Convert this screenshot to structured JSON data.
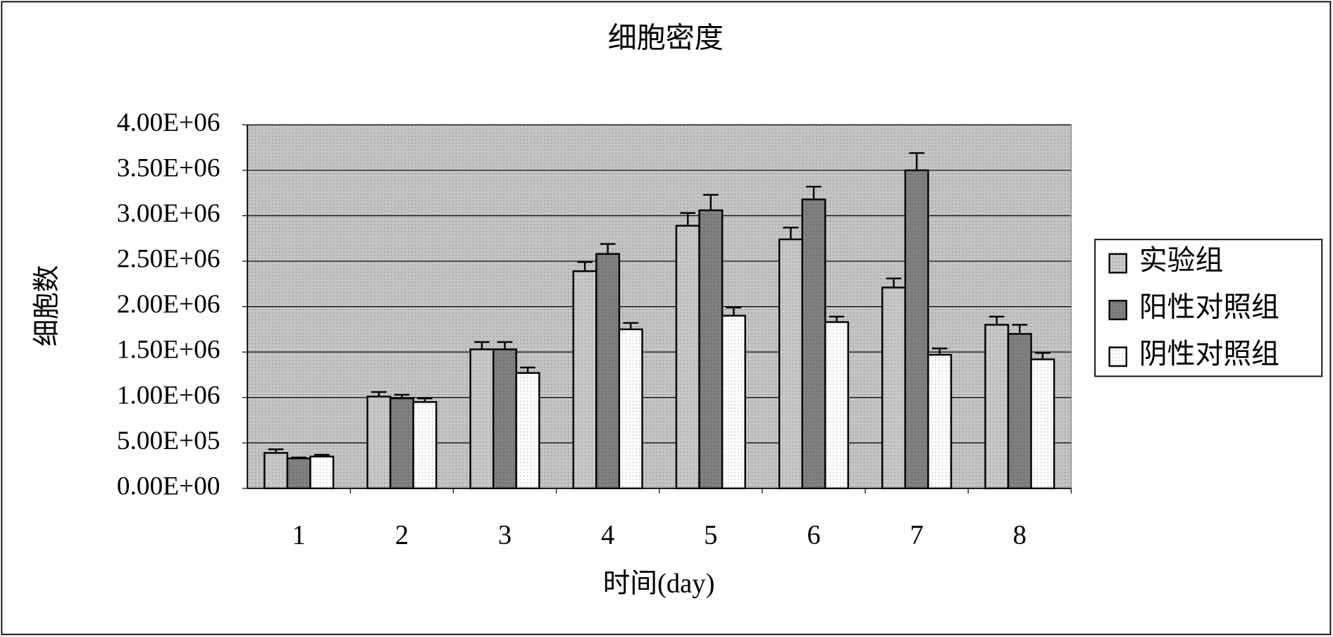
{
  "chart_data": {
    "type": "bar",
    "title": "细胞密度",
    "x_label": "时间(day)",
    "y_label": "细胞数",
    "categories": [
      "1",
      "2",
      "3",
      "4",
      "5",
      "6",
      "7",
      "8"
    ],
    "series": [
      {
        "name": "实验组",
        "color": "#c8c8c8",
        "values": [
          390000,
          1010000,
          1530000,
          2390000,
          2890000,
          2740000,
          2210000,
          1800000
        ],
        "errors": [
          40000,
          50000,
          80000,
          100000,
          140000,
          130000,
          100000,
          90000
        ]
      },
      {
        "name": "阳性对照组",
        "color": "#808080",
        "values": [
          330000,
          990000,
          1530000,
          2580000,
          3060000,
          3180000,
          3500000,
          1700000
        ],
        "errors": [
          10000,
          40000,
          80000,
          110000,
          170000,
          140000,
          190000,
          100000
        ]
      },
      {
        "name": "阴性对照组",
        "color": "#ffffff",
        "values": [
          350000,
          950000,
          1270000,
          1750000,
          1900000,
          1830000,
          1470000,
          1420000
        ],
        "errors": [
          20000,
          40000,
          60000,
          70000,
          90000,
          60000,
          70000,
          70000
        ]
      }
    ],
    "ylim": [
      0,
      4000000
    ],
    "yticks": [
      {
        "value": 0,
        "label": "0.00E+00"
      },
      {
        "value": 500000,
        "label": "5.00E+05"
      },
      {
        "value": 1000000,
        "label": "1.00E+06"
      },
      {
        "value": 1500000,
        "label": "1.50E+06"
      },
      {
        "value": 2000000,
        "label": "2.00E+06"
      },
      {
        "value": 2500000,
        "label": "2.50E+06"
      },
      {
        "value": 3000000,
        "label": "3.00E+06"
      },
      {
        "value": 3500000,
        "label": "3.50E+06"
      },
      {
        "value": 4000000,
        "label": "4.00E+06"
      }
    ],
    "grid": true,
    "legend": "right",
    "plot_background": "#c4c4c4"
  }
}
